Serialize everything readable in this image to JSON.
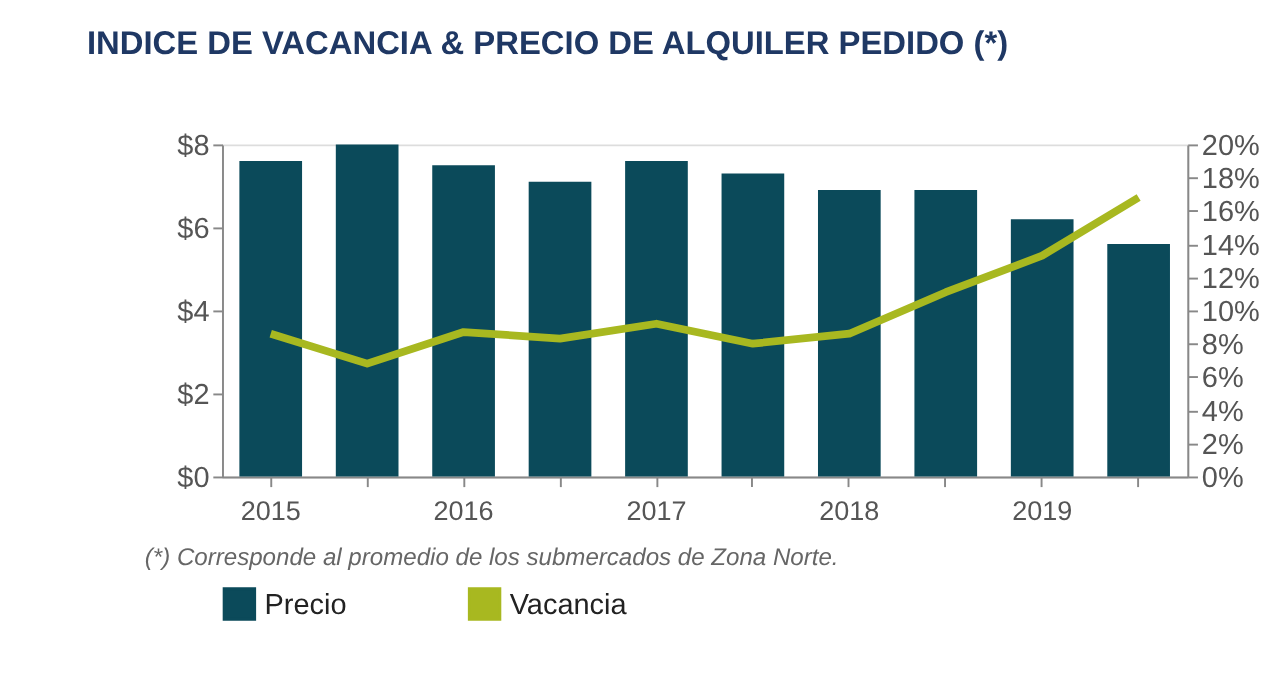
{
  "chart_data": {
    "type": "bar",
    "title": "INDICE DE VACANCIA & PRECIO DE ALQUILER PEDIDO (*)",
    "categories": [
      "2015",
      null,
      "2016",
      null,
      "2017",
      null,
      "2018",
      null,
      "2019",
      null
    ],
    "series": [
      {
        "name": "Precio",
        "color": "#0b4a5a",
        "values": [
          7.6,
          8.0,
          7.5,
          7.1,
          7.6,
          7.3,
          6.9,
          6.9,
          6.2,
          5.6
        ]
      },
      {
        "name": "Vacancia",
        "type": "line",
        "axis": "y2",
        "color": "#a8b820",
        "values": [
          8.6,
          6.8,
          8.7,
          8.3,
          9.2,
          8.0,
          8.6,
          11.1,
          13.3,
          16.8
        ]
      }
    ],
    "ylim": [
      0,
      8
    ],
    "yticks": [
      {
        "value": 0,
        "label": "$0"
      },
      {
        "value": 2,
        "label": "$2"
      },
      {
        "value": 4,
        "label": "$4"
      },
      {
        "value": 6,
        "label": "$6"
      },
      {
        "value": 8,
        "label": "$8"
      }
    ],
    "y2lim": [
      0,
      20
    ],
    "y2ticks": [
      {
        "value": 0,
        "label": "0%"
      },
      {
        "value": 2,
        "label": "2%"
      },
      {
        "value": 4,
        "label": "4%"
      },
      {
        "value": 6,
        "label": "6%"
      },
      {
        "value": 8,
        "label": "8%"
      },
      {
        "value": 10,
        "label": "10%"
      },
      {
        "value": 12,
        "label": "12%"
      },
      {
        "value": 14,
        "label": "14%"
      },
      {
        "value": 16,
        "label": "16%"
      },
      {
        "value": 18,
        "label": "18%"
      },
      {
        "value": 20,
        "label": "20%"
      }
    ],
    "annotations": [
      "(*) Corresponde al promedio de los submercados de Zona Norte."
    ],
    "legend": "bottom",
    "grid": false
  }
}
